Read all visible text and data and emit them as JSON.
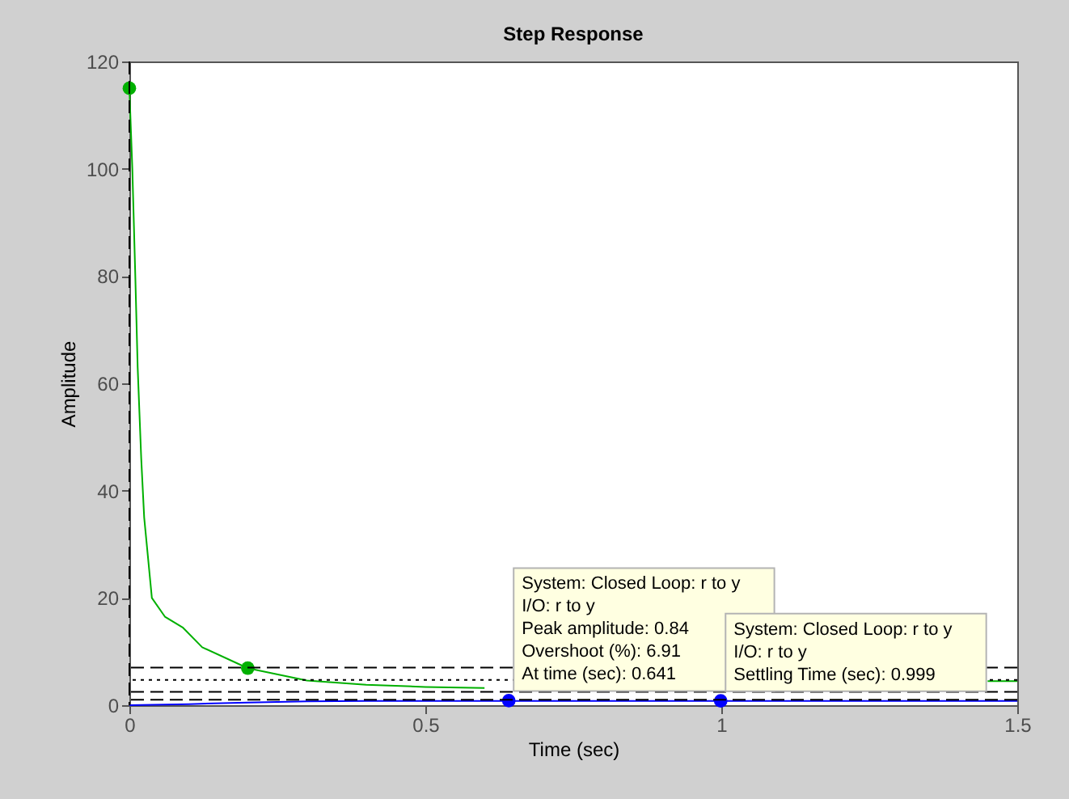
{
  "chart_data": {
    "type": "line",
    "title": "Step Response",
    "xlabel": "Time (sec)",
    "ylabel": "Amplitude",
    "xlim": [
      0,
      1.5
    ],
    "xticks": [
      0,
      0.5,
      1,
      1.5
    ],
    "ylim": [
      0,
      120
    ],
    "yticks": [
      0,
      20,
      40,
      60,
      80,
      100,
      120
    ],
    "grid": false,
    "series": [
      {
        "type": "line",
        "color": "#00b000",
        "x": [
          0,
          0.005,
          0.01,
          0.014,
          0.02,
          0.025,
          0.038,
          0.06,
          0.09,
          0.123,
          0.2,
          0.3,
          0.4,
          0.5,
          0.6,
          1.0,
          1.45,
          1.5
        ],
        "values": [
          115,
          100,
          80,
          63,
          46,
          35,
          20,
          16.5,
          14.5,
          10.8,
          6.9,
          4.6,
          3.8,
          3.4,
          3.2,
          null,
          4.5,
          4.5
        ]
      },
      {
        "type": "line",
        "color": "#0000ff",
        "x": [
          0,
          0.1,
          0.2,
          0.3,
          0.4,
          0.5,
          0.641,
          0.8,
          0.999,
          1.5
        ],
        "values": [
          0,
          0.2,
          0.5,
          0.7,
          0.8,
          0.8,
          0.8,
          0.8,
          0.8,
          0.8
        ]
      },
      {
        "type": "scatter",
        "marker": "circle",
        "color": "#00b000",
        "x": [
          0,
          0.2
        ],
        "values": [
          115,
          6.9
        ]
      },
      {
        "type": "scatter",
        "marker": "circle",
        "color": "#0000ff",
        "x": [
          0.641,
          0.999
        ],
        "values": [
          0.84,
          0.8
        ]
      }
    ],
    "ref_lines": [
      {
        "axis": "y",
        "value": 7.0,
        "color": "#000000",
        "line_style": "dashed"
      },
      {
        "axis": "y",
        "value": 4.7,
        "color": "#000000",
        "line_style": "dotted"
      },
      {
        "axis": "y",
        "value": 2.5,
        "color": "#000000",
        "line_style": "dashed"
      },
      {
        "axis": "y",
        "value": 1.0,
        "color": "#000000",
        "line_style": "dashed"
      },
      {
        "axis": "x",
        "value": 0,
        "color": "#000000",
        "line_style": "dashed"
      }
    ],
    "annotations": [
      {
        "text": "System: Closed Loop: r to y\nI/O: r to y\nPeak amplitude: 0.84\nOvershoot (%): 6.91\nAt time (sec): 0.641",
        "x": 0.641,
        "y": 0.84
      },
      {
        "text": "System: Closed Loop: r to y\nI/O: r to y\nSettling Time (sec): 0.999",
        "x": 0.999,
        "y": 0.8
      }
    ]
  }
}
